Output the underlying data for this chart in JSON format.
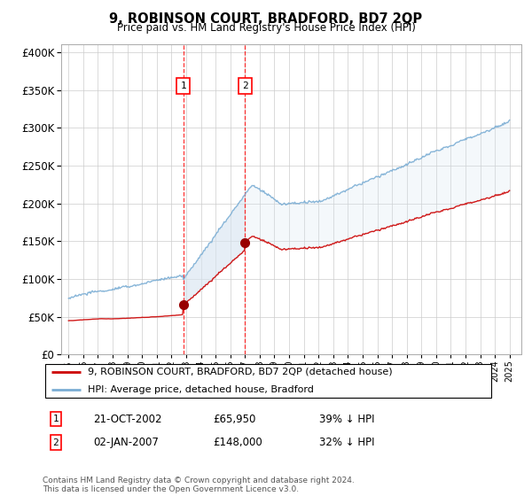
{
  "title": "9, ROBINSON COURT, BRADFORD, BD7 2QP",
  "subtitle": "Price paid vs. HM Land Registry's House Price Index (HPI)",
  "ylim": [
    0,
    400000
  ],
  "yticks": [
    0,
    50000,
    100000,
    150000,
    200000,
    250000,
    300000,
    350000,
    400000
  ],
  "x_start_year": 1995,
  "x_end_year": 2025,
  "sale1_price": 65950,
  "sale1_x": 2002.8,
  "sale2_price": 148000,
  "sale2_x": 2007.0,
  "line_color_red": "#cc0000",
  "line_color_blue": "#7aadd4",
  "shaded_color": "#d6e4f0",
  "grid_color": "#cccccc",
  "background_color": "#ffffff",
  "legend_label_red": "9, ROBINSON COURT, BRADFORD, BD7 2QP (detached house)",
  "legend_label_blue": "HPI: Average price, detached house, Bradford",
  "footnote": "Contains HM Land Registry data © Crown copyright and database right 2024.\nThis data is licensed under the Open Government Licence v3.0.",
  "table_row1": [
    "1",
    "21-OCT-2002",
    "£65,950",
    "39% ↓ HPI"
  ],
  "table_row2": [
    "2",
    "02-JAN-2007",
    "£148,000",
    "32% ↓ HPI"
  ]
}
